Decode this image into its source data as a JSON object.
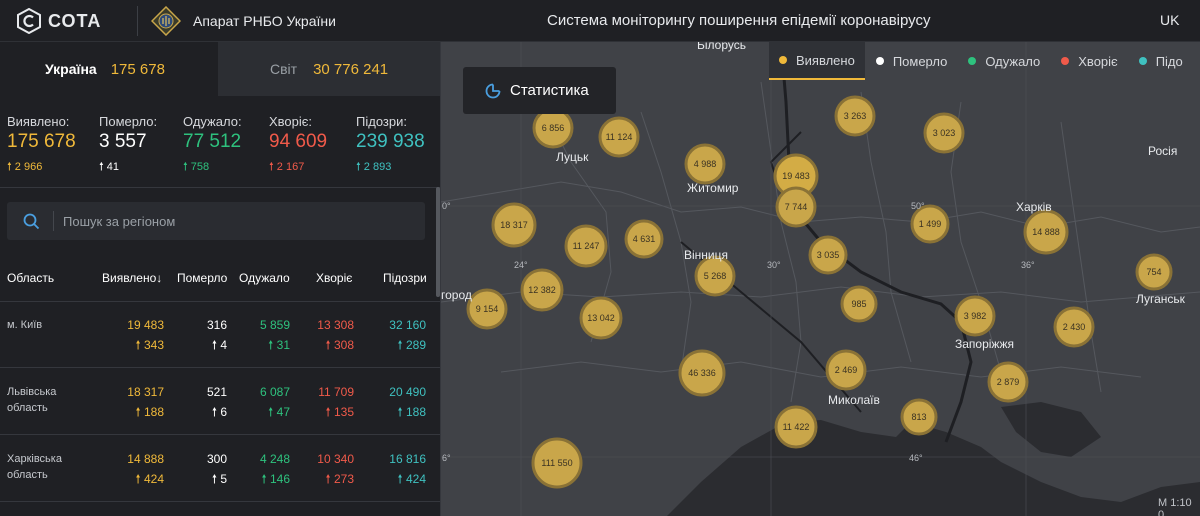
{
  "header": {
    "logo_text": "СОТА",
    "org_name": "Апарат РНБО України",
    "title": "Система моніторингу поширення епідемії коронавірусу",
    "lang": "UK"
  },
  "tabs": {
    "ukraine": {
      "label": "Україна",
      "value": "175 678"
    },
    "world": {
      "label": "Світ",
      "value": "30 776 241"
    }
  },
  "stats": [
    {
      "label": "Виявлено:",
      "value": "175 678",
      "delta": "2 966",
      "color": "#f0b93a"
    },
    {
      "label": "Померло:",
      "value": "3 557",
      "delta": "41",
      "color": "#ffffff"
    },
    {
      "label": "Одужало:",
      "value": "77 512",
      "delta": "758",
      "color": "#2ec27e"
    },
    {
      "label": "Хворіє:",
      "value": "94 609",
      "delta": "2 167",
      "color": "#f05a4a"
    },
    {
      "label": "Підозри:",
      "value": "239 938",
      "delta": "2 893",
      "color": "#3fc1c0"
    }
  ],
  "search": {
    "placeholder": "Пошук за регіоном"
  },
  "table": {
    "headers": {
      "region": "Область",
      "detected": "Виявлено",
      "died": "Померло",
      "recovered": "Одужало",
      "sick": "Хворіє",
      "suspected": "Підозри"
    },
    "rows": [
      {
        "region": "м. Київ",
        "detected": "19 483",
        "detected_d": "343",
        "died": "316",
        "died_d": "4",
        "recovered": "5 859",
        "recovered_d": "31",
        "sick": "13 308",
        "sick_d": "308",
        "suspected": "32 160",
        "suspected_d": "289"
      },
      {
        "region": "Львівська область",
        "detected": "18 317",
        "detected_d": "188",
        "died": "521",
        "died_d": "6",
        "recovered": "6 087",
        "recovered_d": "47",
        "sick": "11 709",
        "sick_d": "135",
        "suspected": "20 490",
        "suspected_d": "188"
      },
      {
        "region": "Харківська область",
        "detected": "14 888",
        "detected_d": "424",
        "died": "300",
        "died_d": "5",
        "recovered": "4 248",
        "recovered_d": "146",
        "sick": "10 340",
        "sick_d": "273",
        "suspected": "16 816",
        "suspected_d": "424"
      }
    ]
  },
  "map": {
    "stats_button": "Статистика",
    "legend": [
      {
        "label": "Виявлено",
        "color": "#f0b93a",
        "active": true
      },
      {
        "label": "Померло",
        "color": "#ffffff"
      },
      {
        "label": "Одужало",
        "color": "#2ec27e"
      },
      {
        "label": "Хворіє",
        "color": "#f05a4a"
      },
      {
        "label": "Підо",
        "color": "#3fc1c0"
      }
    ],
    "scale": "M 1:10 0",
    "cities": [
      "Білорусь",
      "Луцьк",
      "Житомир",
      "Вінниця",
      "Харків",
      "Росія",
      "Луганськ",
      "Запоріжжя",
      "Миколаїв",
      "город"
    ],
    "grid_labels": [
      "0°",
      "24°",
      "30°",
      "50°",
      "36°",
      "46°",
      "6°"
    ],
    "clusters": [
      "6 856",
      "11 124",
      "3 263",
      "3 023",
      "4 988",
      "19 483",
      "7 744",
      "18 317",
      "11 247",
      "4 631",
      "1 499",
      "14 888",
      "3 035",
      "5 268",
      "12 382",
      "754",
      "9 154",
      "13 042",
      "985",
      "3 982",
      "2 430",
      "46 336",
      "2 469",
      "2 879",
      "813",
      "11 422",
      "111 550"
    ]
  }
}
